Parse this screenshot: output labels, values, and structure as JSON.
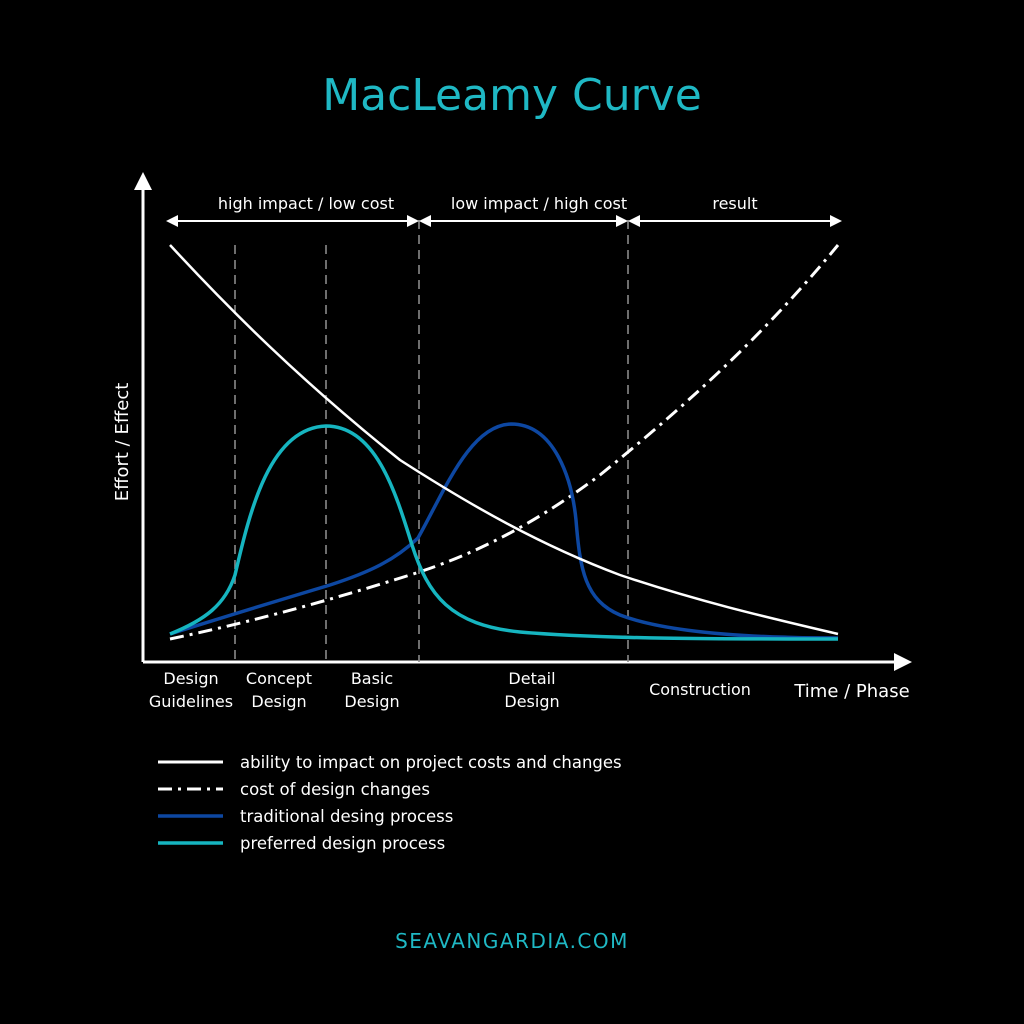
{
  "title": "MacLeamy Curve",
  "brand": "SEAVANGARDIA.COM",
  "colors": {
    "background": "#000000",
    "title": "#1fb8c4",
    "white": "#ffffff",
    "traditional": "#0d47a1",
    "preferred": "#16b5c0",
    "divider": "#8a8a8a",
    "brand": "#1fb8c4"
  },
  "axes": {
    "y_label": "Effort / Effect",
    "x_label": "Time / Phase"
  },
  "spans": [
    {
      "label": "high impact / low cost"
    },
    {
      "label": "low impact / high cost"
    },
    {
      "label": "result"
    }
  ],
  "phases": [
    {
      "line1": "Design",
      "line2": "Guidelines"
    },
    {
      "line1": "Concept",
      "line2": "Design"
    },
    {
      "line1": "Basic",
      "line2": "Design"
    },
    {
      "line1": "Detail",
      "line2": "Design"
    },
    {
      "line1": "Construction",
      "line2": ""
    }
  ],
  "legend": [
    {
      "label": "ability to impact on project costs and changes",
      "style": "solid",
      "color": "#ffffff"
    },
    {
      "label": "cost of design changes",
      "style": "dashdot",
      "color": "#ffffff"
    },
    {
      "label": "traditional desing process",
      "style": "solid",
      "color": "#0d47a1"
    },
    {
      "label": "preferred design process",
      "style": "solid",
      "color": "#16b5c0"
    }
  ],
  "curves": [
    {
      "name": "ability to impact on project costs and changes",
      "style": "solid"
    },
    {
      "name": "cost of design changes",
      "style": "dashdot"
    },
    {
      "name": "traditional desing process",
      "style": "solid"
    },
    {
      "name": "preferred design process",
      "style": "solid"
    }
  ]
}
